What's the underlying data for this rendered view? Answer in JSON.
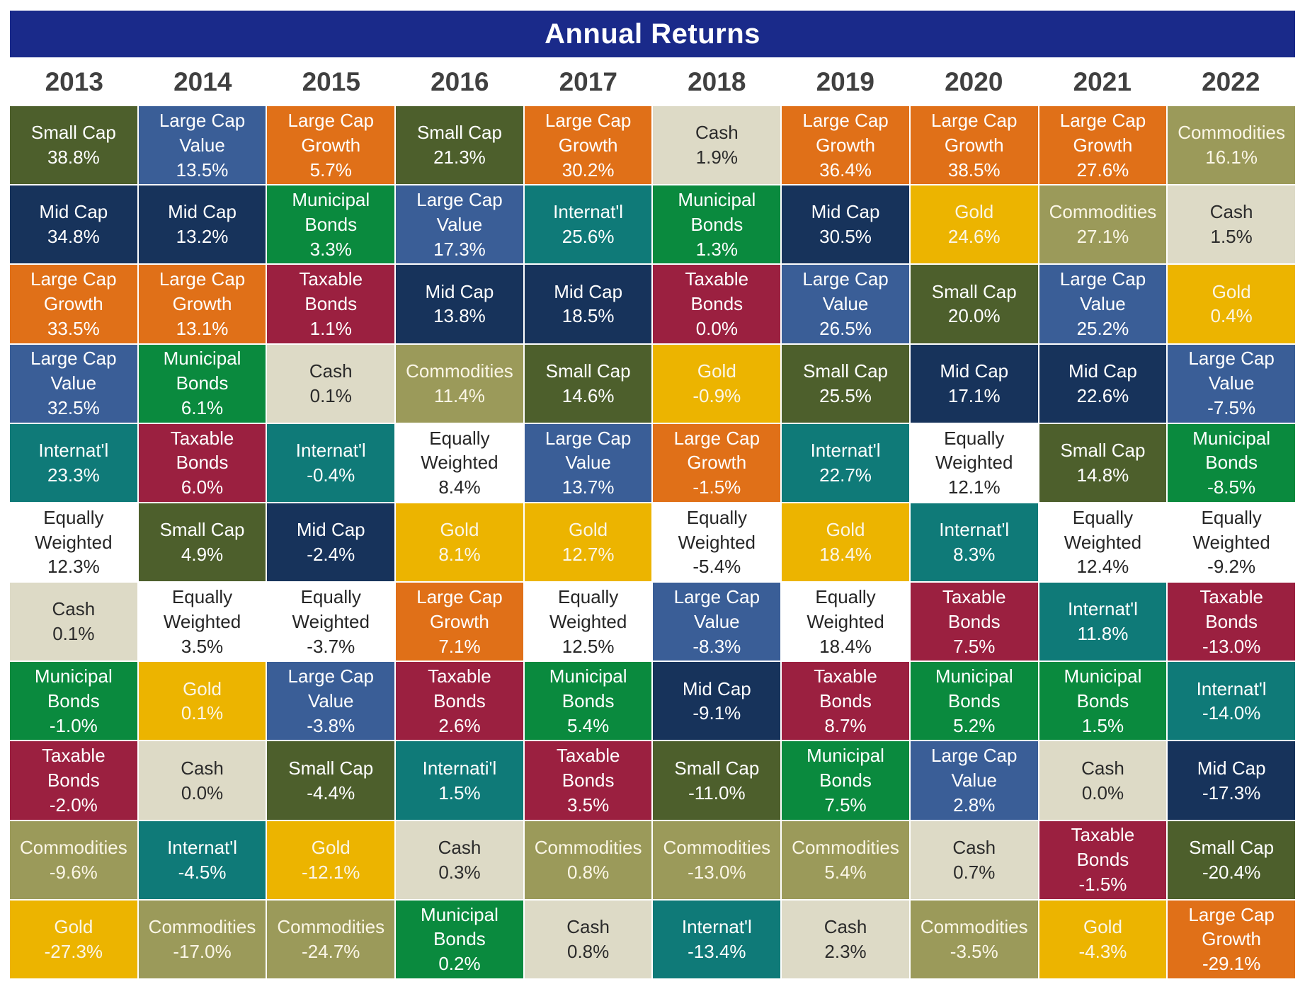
{
  "title": "Annual Returns",
  "colors": {
    "title_bg": "#1a2a8a",
    "Small Cap": "#4d5f2c",
    "Large Cap Value": "#3a5e97",
    "Large Cap Growth": "#e07018",
    "Mid Cap": "#17335b",
    "Municipal Bonds": "#0a8a3e",
    "Internat'l": "#0f7a78",
    "Taxable Bonds": "#9b2040",
    "Cash": "#dddac6",
    "Commodities": "#9b9a5a",
    "Gold": "#ecb400",
    "Equally Weighted": "#ffffff"
  },
  "chart_data": {
    "type": "table",
    "title": "Annual Returns",
    "years": [
      "2013",
      "2014",
      "2015",
      "2016",
      "2017",
      "2018",
      "2019",
      "2020",
      "2021",
      "2022"
    ],
    "columns": [
      {
        "year": "2013",
        "cells": [
          {
            "asset": "Small Cap",
            "label": "Small Cap",
            "value": "38.8%"
          },
          {
            "asset": "Mid Cap",
            "label": "Mid Cap",
            "value": "34.8%"
          },
          {
            "asset": "Large Cap Growth",
            "label": "Large Cap\nGrowth",
            "value": "33.5%"
          },
          {
            "asset": "Large Cap Value",
            "label": "Large Cap\nValue",
            "value": "32.5%"
          },
          {
            "asset": "Internat'l",
            "label": "Internat'l",
            "value": "23.3%"
          },
          {
            "asset": "Equally Weighted",
            "label": "Equally\nWeighted",
            "value": "12.3%"
          },
          {
            "asset": "Cash",
            "label": "Cash",
            "value": "0.1%"
          },
          {
            "asset": "Municipal Bonds",
            "label": "Municipal\nBonds",
            "value": "-1.0%"
          },
          {
            "asset": "Taxable Bonds",
            "label": "Taxable\nBonds",
            "value": "-2.0%"
          },
          {
            "asset": "Commodities",
            "label": "Commodities",
            "value": "-9.6%"
          },
          {
            "asset": "Gold",
            "label": "Gold",
            "value": "-27.3%"
          }
        ]
      },
      {
        "year": "2014",
        "cells": [
          {
            "asset": "Large Cap Value",
            "label": "Large Cap\nValue",
            "value": "13.5%"
          },
          {
            "asset": "Mid Cap",
            "label": "Mid Cap",
            "value": "13.2%"
          },
          {
            "asset": "Large Cap Growth",
            "label": "Large Cap\nGrowth",
            "value": "13.1%"
          },
          {
            "asset": "Municipal Bonds",
            "label": "Municipal\nBonds",
            "value": "6.1%"
          },
          {
            "asset": "Taxable Bonds",
            "label": "Taxable\nBonds",
            "value": "6.0%"
          },
          {
            "asset": "Small Cap",
            "label": "Small Cap",
            "value": "4.9%"
          },
          {
            "asset": "Equally Weighted",
            "label": "Equally\nWeighted",
            "value": "3.5%"
          },
          {
            "asset": "Gold",
            "label": "Gold",
            "value": "0.1%"
          },
          {
            "asset": "Cash",
            "label": "Cash",
            "value": "0.0%"
          },
          {
            "asset": "Internat'l",
            "label": "Internat'l",
            "value": "-4.5%"
          },
          {
            "asset": "Commodities",
            "label": "Commodities",
            "value": "-17.0%"
          }
        ]
      },
      {
        "year": "2015",
        "cells": [
          {
            "asset": "Large Cap Growth",
            "label": "Large Cap\nGrowth",
            "value": "5.7%"
          },
          {
            "asset": "Municipal Bonds",
            "label": "Municipal\nBonds",
            "value": "3.3%"
          },
          {
            "asset": "Taxable Bonds",
            "label": "Taxable\nBonds",
            "value": "1.1%"
          },
          {
            "asset": "Cash",
            "label": "Cash",
            "value": "0.1%"
          },
          {
            "asset": "Internat'l",
            "label": "Internat'l",
            "value": "-0.4%"
          },
          {
            "asset": "Mid Cap",
            "label": "Mid Cap",
            "value": "-2.4%"
          },
          {
            "asset": "Equally Weighted",
            "label": "Equally\nWeighted",
            "value": "-3.7%"
          },
          {
            "asset": "Large Cap Value",
            "label": "Large Cap\nValue",
            "value": "-3.8%"
          },
          {
            "asset": "Small Cap",
            "label": "Small Cap",
            "value": "-4.4%"
          },
          {
            "asset": "Gold",
            "label": "Gold",
            "value": "-12.1%"
          },
          {
            "asset": "Commodities",
            "label": "Commodities",
            "value": "-24.7%"
          }
        ]
      },
      {
        "year": "2016",
        "cells": [
          {
            "asset": "Small Cap",
            "label": "Small Cap",
            "value": "21.3%"
          },
          {
            "asset": "Large Cap Value",
            "label": "Large Cap\nValue",
            "value": "17.3%"
          },
          {
            "asset": "Mid Cap",
            "label": "Mid Cap",
            "value": "13.8%"
          },
          {
            "asset": "Commodities",
            "label": "Commodities",
            "value": "11.4%"
          },
          {
            "asset": "Equally Weighted",
            "label": "Equally\nWeighted",
            "value": "8.4%"
          },
          {
            "asset": "Gold",
            "label": "Gold",
            "value": "8.1%"
          },
          {
            "asset": "Large Cap Growth",
            "label": "Large Cap\nGrowth",
            "value": "7.1%"
          },
          {
            "asset": "Taxable Bonds",
            "label": "Taxable\nBonds",
            "value": "2.6%"
          },
          {
            "asset": "Internat'l",
            "label": "Internati'l",
            "value": "1.5%"
          },
          {
            "asset": "Cash",
            "label": "Cash",
            "value": "0.3%"
          },
          {
            "asset": "Municipal Bonds",
            "label": "Municipal\nBonds",
            "value": "0.2%"
          }
        ]
      },
      {
        "year": "2017",
        "cells": [
          {
            "asset": "Large Cap Growth",
            "label": "Large Cap\nGrowth",
            "value": "30.2%"
          },
          {
            "asset": "Internat'l",
            "label": "Internat'l",
            "value": "25.6%"
          },
          {
            "asset": "Mid Cap",
            "label": "Mid Cap",
            "value": "18.5%"
          },
          {
            "asset": "Small Cap",
            "label": "Small Cap",
            "value": "14.6%"
          },
          {
            "asset": "Large Cap Value",
            "label": "Large Cap\nValue",
            "value": "13.7%"
          },
          {
            "asset": "Gold",
            "label": "Gold",
            "value": "12.7%"
          },
          {
            "asset": "Equally Weighted",
            "label": "Equally\nWeighted",
            "value": "12.5%"
          },
          {
            "asset": "Municipal Bonds",
            "label": "Municipal\nBonds",
            "value": "5.4%"
          },
          {
            "asset": "Taxable Bonds",
            "label": "Taxable\nBonds",
            "value": "3.5%"
          },
          {
            "asset": "Commodities",
            "label": "Commodities",
            "value": "0.8%"
          },
          {
            "asset": "Cash",
            "label": "Cash",
            "value": "0.8%"
          }
        ]
      },
      {
        "year": "2018",
        "cells": [
          {
            "asset": "Cash",
            "label": "Cash",
            "value": "1.9%"
          },
          {
            "asset": "Municipal Bonds",
            "label": "Municipal\nBonds",
            "value": "1.3%"
          },
          {
            "asset": "Taxable Bonds",
            "label": "Taxable\nBonds",
            "value": "0.0%"
          },
          {
            "asset": "Gold",
            "label": "Gold",
            "value": "-0.9%"
          },
          {
            "asset": "Large Cap Growth",
            "label": "Large Cap\nGrowth",
            "value": "-1.5%"
          },
          {
            "asset": "Equally Weighted",
            "label": "Equally\nWeighted",
            "value": "-5.4%"
          },
          {
            "asset": "Large Cap Value",
            "label": "Large Cap\nValue",
            "value": "-8.3%"
          },
          {
            "asset": "Mid Cap",
            "label": "Mid Cap",
            "value": "-9.1%"
          },
          {
            "asset": "Small Cap",
            "label": "Small Cap",
            "value": "-11.0%"
          },
          {
            "asset": "Commodities",
            "label": "Commodities",
            "value": "-13.0%"
          },
          {
            "asset": "Internat'l",
            "label": "Internat'l",
            "value": "-13.4%"
          }
        ]
      },
      {
        "year": "2019",
        "cells": [
          {
            "asset": "Large Cap Growth",
            "label": "Large Cap\nGrowth",
            "value": "36.4%"
          },
          {
            "asset": "Mid Cap",
            "label": "Mid Cap",
            "value": "30.5%"
          },
          {
            "asset": "Large Cap Value",
            "label": "Large Cap\nValue",
            "value": "26.5%"
          },
          {
            "asset": "Small Cap",
            "label": "Small Cap",
            "value": "25.5%"
          },
          {
            "asset": "Internat'l",
            "label": "Internat'l",
            "value": "22.7%"
          },
          {
            "asset": "Gold",
            "label": "Gold",
            "value": "18.4%"
          },
          {
            "asset": "Equally Weighted",
            "label": "Equally\nWeighted",
            "value": "18.4%"
          },
          {
            "asset": "Taxable Bonds",
            "label": "Taxable\nBonds",
            "value": "8.7%"
          },
          {
            "asset": "Municipal Bonds",
            "label": "Municipal\nBonds",
            "value": "7.5%"
          },
          {
            "asset": "Commodities",
            "label": "Commodities",
            "value": "5.4%"
          },
          {
            "asset": "Cash",
            "label": "Cash",
            "value": "2.3%"
          }
        ]
      },
      {
        "year": "2020",
        "cells": [
          {
            "asset": "Large Cap Growth",
            "label": "Large Cap\nGrowth",
            "value": "38.5%"
          },
          {
            "asset": "Gold",
            "label": "Gold",
            "value": "24.6%"
          },
          {
            "asset": "Small Cap",
            "label": "Small Cap",
            "value": "20.0%"
          },
          {
            "asset": "Mid Cap",
            "label": "Mid Cap",
            "value": "17.1%"
          },
          {
            "asset": "Equally Weighted",
            "label": "Equally\nWeighted",
            "value": "12.1%"
          },
          {
            "asset": "Internat'l",
            "label": "Internat'l",
            "value": "8.3%"
          },
          {
            "asset": "Taxable Bonds",
            "label": "Taxable\nBonds",
            "value": "7.5%"
          },
          {
            "asset": "Municipal Bonds",
            "label": "Municipal\nBonds",
            "value": "5.2%"
          },
          {
            "asset": "Large Cap Value",
            "label": "Large Cap\nValue",
            "value": "2.8%"
          },
          {
            "asset": "Cash",
            "label": "Cash",
            "value": "0.7%"
          },
          {
            "asset": "Commodities",
            "label": "Commodities",
            "value": "-3.5%"
          }
        ]
      },
      {
        "year": "2021",
        "cells": [
          {
            "asset": "Large Cap Growth",
            "label": "Large Cap\nGrowth",
            "value": "27.6%"
          },
          {
            "asset": "Commodities",
            "label": "Commodities",
            "value": "27.1%"
          },
          {
            "asset": "Large Cap Value",
            "label": "Large Cap\nValue",
            "value": "25.2%"
          },
          {
            "asset": "Mid Cap",
            "label": "Mid Cap",
            "value": "22.6%"
          },
          {
            "asset": "Small Cap",
            "label": "Small Cap",
            "value": "14.8%"
          },
          {
            "asset": "Equally Weighted",
            "label": "Equally\nWeighted",
            "value": "12.4%"
          },
          {
            "asset": "Internat'l",
            "label": "Internat'l",
            "value": "11.8%"
          },
          {
            "asset": "Municipal Bonds",
            "label": "Municipal\nBonds",
            "value": "1.5%"
          },
          {
            "asset": "Cash",
            "label": "Cash",
            "value": "0.0%"
          },
          {
            "asset": "Taxable Bonds",
            "label": "Taxable\nBonds",
            "value": "-1.5%"
          },
          {
            "asset": "Gold",
            "label": "Gold",
            "value": "-4.3%"
          }
        ]
      },
      {
        "year": "2022",
        "cells": [
          {
            "asset": "Commodities",
            "label": "Commodities",
            "value": "16.1%"
          },
          {
            "asset": "Cash",
            "label": "Cash",
            "value": "1.5%"
          },
          {
            "asset": "Gold",
            "label": "Gold",
            "value": "0.4%"
          },
          {
            "asset": "Large Cap Value",
            "label": "Large Cap\nValue",
            "value": "-7.5%"
          },
          {
            "asset": "Municipal Bonds",
            "label": "Municipal\nBonds",
            "value": "-8.5%"
          },
          {
            "asset": "Equally Weighted",
            "label": "Equally\nWeighted",
            "value": "-9.2%"
          },
          {
            "asset": "Taxable Bonds",
            "label": "Taxable\nBonds",
            "value": "-13.0%"
          },
          {
            "asset": "Internat'l",
            "label": "Internat'l",
            "value": "-14.0%"
          },
          {
            "asset": "Mid Cap",
            "label": "Mid Cap",
            "value": "-17.3%"
          },
          {
            "asset": "Small Cap",
            "label": "Small Cap",
            "value": "-20.4%"
          },
          {
            "asset": "Large Cap Growth",
            "label": "Large Cap\nGrowth",
            "value": "-29.1%"
          }
        ]
      }
    ]
  }
}
